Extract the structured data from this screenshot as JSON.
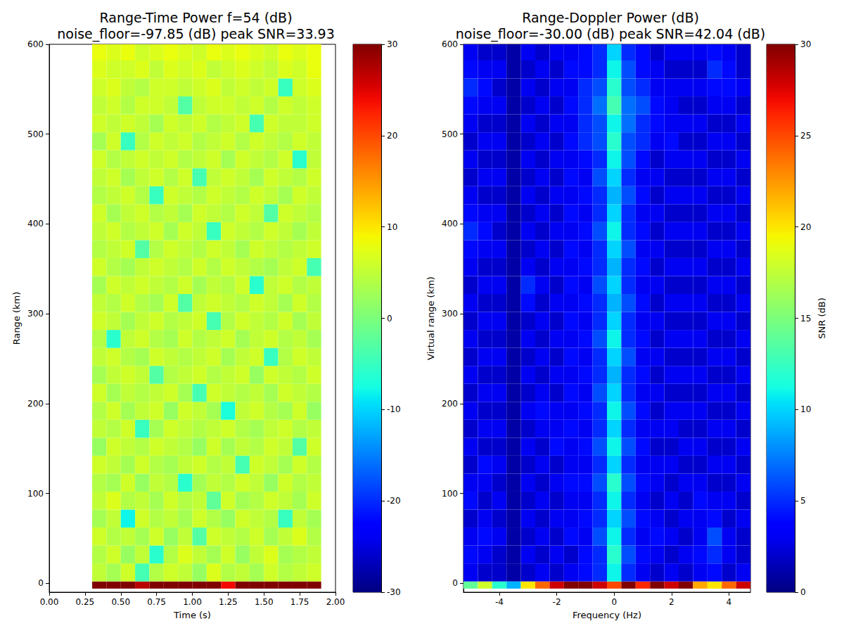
{
  "chart_data": [
    {
      "type": "heatmap",
      "title": "Range-Time Power f=54 (dB)\nnoise_floor=-97.85 (dB) peak SNR=33.93",
      "x_label": "Time (s)",
      "y_label": "Range (km)",
      "xlim": [
        0,
        2
      ],
      "xticks": [
        {
          "value": 0,
          "label": "0.00"
        },
        {
          "value": 0.25,
          "label": "0.25"
        },
        {
          "value": 0.5,
          "label": "0.50"
        },
        {
          "value": 0.75,
          "label": "0.75"
        },
        {
          "value": 1,
          "label": "1.00"
        },
        {
          "value": 1.25,
          "label": "1.25"
        },
        {
          "value": 1.5,
          "label": "1.50"
        },
        {
          "value": 1.75,
          "label": "1.75"
        },
        {
          "value": 2,
          "label": "2.00"
        }
      ],
      "ylim": [
        -10,
        600
      ],
      "yticks": [
        0,
        100,
        200,
        300,
        400,
        500,
        600
      ],
      "grid": false,
      "x_bins": [
        0.3,
        0.4,
        0.5,
        0.6,
        0.7,
        0.8,
        0.9,
        1.0,
        1.1,
        1.2,
        1.3,
        1.4,
        1.5,
        1.6,
        1.7,
        1.8,
        1.9
      ],
      "y_bins": [
        -6,
        2,
        22,
        42,
        62,
        82,
        102,
        122,
        142,
        162,
        182,
        202,
        222,
        242,
        262,
        282,
        302,
        322,
        342,
        362,
        382,
        402,
        422,
        442,
        462,
        482,
        502,
        522,
        542,
        562,
        582,
        600
      ],
      "cells": [
        [
          30,
          30,
          30,
          27,
          30,
          30,
          30,
          30,
          30,
          24,
          30,
          30,
          30,
          30,
          30,
          30
        ],
        [
          5,
          3,
          6,
          -4,
          4,
          6,
          5,
          2,
          7,
          4,
          5,
          3,
          6,
          4,
          5,
          6
        ],
        [
          4,
          6,
          2,
          5,
          -6,
          4,
          7,
          5,
          3,
          6,
          2,
          5,
          7,
          3,
          4,
          5
        ],
        [
          6,
          4,
          5,
          3,
          6,
          2,
          5,
          -3,
          6,
          5,
          4,
          6,
          3,
          5,
          7,
          4
        ],
        [
          3,
          5,
          -8,
          6,
          4,
          5,
          3,
          6,
          4,
          2,
          6,
          5,
          4,
          -5,
          5,
          3
        ],
        [
          5,
          7,
          4,
          5,
          3,
          6,
          4,
          5,
          -2,
          6,
          3,
          4,
          6,
          5,
          3,
          6
        ],
        [
          4,
          3,
          6,
          2,
          5,
          4,
          -6,
          3,
          5,
          4,
          6,
          5,
          2,
          6,
          4,
          5
        ],
        [
          6,
          5,
          3,
          6,
          4,
          3,
          5,
          6,
          4,
          5,
          -4,
          6,
          5,
          3,
          6,
          4
        ],
        [
          2,
          6,
          5,
          4,
          6,
          5,
          4,
          2,
          6,
          3,
          5,
          4,
          6,
          5,
          -3,
          6
        ],
        [
          5,
          4,
          6,
          -5,
          3,
          6,
          5,
          4,
          5,
          6,
          4,
          3,
          5,
          6,
          4,
          5
        ],
        [
          4,
          6,
          3,
          5,
          6,
          2,
          6,
          5,
          3,
          -7,
          5,
          6,
          4,
          3,
          6,
          2
        ],
        [
          6,
          3,
          5,
          4,
          5,
          6,
          3,
          -4,
          6,
          5,
          4,
          5,
          3,
          6,
          5,
          4
        ],
        [
          3,
          5,
          6,
          5,
          -3,
          4,
          5,
          6,
          4,
          5,
          6,
          2,
          6,
          5,
          4,
          6
        ],
        [
          5,
          6,
          4,
          3,
          6,
          5,
          4,
          5,
          6,
          3,
          5,
          6,
          -5,
          4,
          6,
          5
        ],
        [
          4,
          -6,
          5,
          6,
          4,
          3,
          6,
          4,
          5,
          6,
          3,
          5,
          6,
          4,
          5,
          3
        ],
        [
          6,
          5,
          3,
          5,
          6,
          4,
          5,
          6,
          -4,
          4,
          6,
          5,
          4,
          6,
          3,
          5
        ],
        [
          5,
          4,
          6,
          4,
          3,
          6,
          -3,
          5,
          6,
          5,
          4,
          6,
          5,
          3,
          6,
          4
        ],
        [
          3,
          6,
          5,
          6,
          5,
          4,
          6,
          3,
          5,
          4,
          6,
          -6,
          5,
          6,
          4,
          5
        ],
        [
          6,
          4,
          3,
          5,
          6,
          5,
          4,
          6,
          4,
          6,
          5,
          4,
          3,
          5,
          6,
          -4
        ],
        [
          4,
          5,
          6,
          -3,
          4,
          6,
          5,
          4,
          6,
          5,
          3,
          6,
          5,
          4,
          5,
          6
        ],
        [
          5,
          6,
          4,
          5,
          6,
          3,
          6,
          5,
          -5,
          6,
          5,
          4,
          6,
          5,
          3,
          5
        ],
        [
          6,
          3,
          5,
          6,
          4,
          5,
          3,
          6,
          5,
          4,
          6,
          5,
          -3,
          6,
          5,
          4
        ],
        [
          4,
          5,
          6,
          4,
          -5,
          6,
          5,
          4,
          6,
          5,
          4,
          6,
          5,
          3,
          6,
          5
        ],
        [
          5,
          6,
          3,
          5,
          6,
          4,
          6,
          -4,
          5,
          6,
          5,
          3,
          6,
          5,
          4,
          6
        ],
        [
          6,
          4,
          5,
          6,
          5,
          6,
          4,
          5,
          6,
          3,
          6,
          5,
          4,
          6,
          -6,
          5
        ],
        [
          3,
          6,
          -5,
          4,
          6,
          5,
          6,
          4,
          5,
          6,
          4,
          6,
          5,
          4,
          6,
          5
        ],
        [
          6,
          5,
          6,
          5,
          3,
          6,
          5,
          6,
          4,
          5,
          6,
          -4,
          6,
          5,
          5,
          6
        ],
        [
          5,
          6,
          4,
          6,
          6,
          5,
          -3,
          5,
          6,
          6,
          5,
          6,
          4,
          6,
          5,
          6
        ],
        [
          6,
          7,
          5,
          4,
          6,
          6,
          5,
          6,
          7,
          5,
          6,
          5,
          6,
          -5,
          6,
          7
        ],
        [
          7,
          6,
          6,
          7,
          5,
          7,
          6,
          7,
          5,
          6,
          7,
          6,
          5,
          7,
          6,
          8
        ],
        [
          8,
          7,
          8,
          6,
          7,
          8,
          7,
          6,
          8,
          7,
          8,
          7,
          6,
          8,
          7,
          8
        ]
      ],
      "colorbar": {
        "range": [
          -30,
          30
        ],
        "ticks": [
          -30,
          -20,
          -10,
          0,
          10,
          20,
          30
        ]
      }
    },
    {
      "type": "heatmap",
      "title": "Range-Doppler Power (dB)\nnoise_floor=-30.00 (dB) peak SNR=42.04 (dB)",
      "x_label": "Frequency (Hz)",
      "y_label": "Virtual range (km)",
      "xlim": [
        -5.25,
        4.75
      ],
      "xticks": [
        -4,
        -2,
        0,
        2,
        4
      ],
      "ylim": [
        -10,
        600
      ],
      "yticks": [
        0,
        100,
        200,
        300,
        400,
        500,
        600
      ],
      "grid": false,
      "x_bins": [
        -5.25,
        -4.75,
        -4.25,
        -3.75,
        -3.25,
        -2.75,
        -2.25,
        -1.75,
        -1.25,
        -0.75,
        -0.25,
        0.25,
        0.75,
        1.25,
        1.75,
        2.25,
        2.75,
        3.25,
        3.75,
        4.25,
        4.75
      ],
      "y_bins": [
        -6,
        2,
        22,
        42,
        62,
        82,
        102,
        122,
        142,
        162,
        182,
        202,
        222,
        242,
        262,
        282,
        302,
        322,
        342,
        362,
        382,
        402,
        422,
        442,
        462,
        482,
        502,
        522,
        542,
        562,
        582,
        600
      ],
      "cells": [
        [
          14,
          18,
          12,
          9,
          20,
          24,
          28,
          30,
          30,
          28,
          25,
          30,
          26,
          30,
          28,
          30,
          22,
          20,
          24,
          28
        ],
        [
          3,
          2,
          2,
          1,
          2,
          3,
          2,
          3,
          4,
          5,
          11,
          5,
          3,
          2,
          3,
          2,
          3,
          4,
          2,
          3
        ],
        [
          4,
          3,
          2,
          1,
          3,
          2,
          3,
          2,
          4,
          5,
          12,
          6,
          4,
          3,
          2,
          3,
          4,
          5,
          3,
          2
        ],
        [
          3,
          4,
          3,
          1,
          2,
          3,
          2,
          4,
          3,
          6,
          11,
          5,
          3,
          4,
          3,
          2,
          3,
          6,
          3,
          2
        ],
        [
          2,
          3,
          2,
          1,
          3,
          2,
          3,
          3,
          4,
          5,
          10,
          6,
          4,
          3,
          2,
          3,
          3,
          4,
          2,
          3
        ],
        [
          4,
          2,
          3,
          1,
          2,
          3,
          2,
          3,
          3,
          5,
          11,
          5,
          3,
          2,
          3,
          2,
          4,
          3,
          3,
          2
        ],
        [
          3,
          3,
          2,
          1,
          3,
          2,
          3,
          4,
          4,
          6,
          12,
          6,
          4,
          3,
          2,
          3,
          3,
          2,
          2,
          3
        ],
        [
          2,
          4,
          3,
          1,
          2,
          3,
          2,
          3,
          3,
          5,
          10,
          5,
          3,
          3,
          3,
          2,
          2,
          3,
          3,
          2
        ],
        [
          3,
          2,
          2,
          1,
          3,
          2,
          4,
          3,
          4,
          6,
          11,
          6,
          4,
          2,
          2,
          3,
          3,
          2,
          2,
          3
        ],
        [
          2,
          3,
          3,
          1,
          2,
          3,
          3,
          4,
          3,
          5,
          10,
          5,
          3,
          3,
          3,
          2,
          2,
          3,
          3,
          2
        ],
        [
          3,
          2,
          2,
          1,
          3,
          4,
          3,
          3,
          4,
          5,
          11,
          6,
          4,
          2,
          3,
          3,
          3,
          2,
          2,
          3
        ],
        [
          2,
          3,
          3,
          1,
          2,
          3,
          2,
          4,
          3,
          6,
          10,
          5,
          3,
          3,
          2,
          2,
          2,
          3,
          3,
          2
        ],
        [
          3,
          2,
          2,
          1,
          3,
          2,
          3,
          3,
          4,
          5,
          9,
          5,
          4,
          2,
          3,
          3,
          3,
          2,
          2,
          3
        ],
        [
          2,
          3,
          3,
          1,
          2,
          3,
          2,
          4,
          3,
          5,
          10,
          6,
          3,
          3,
          2,
          2,
          2,
          3,
          3,
          2
        ],
        [
          3,
          2,
          2,
          1,
          3,
          2,
          3,
          3,
          4,
          6,
          11,
          5,
          4,
          2,
          3,
          3,
          3,
          2,
          2,
          3
        ],
        [
          2,
          3,
          3,
          1,
          2,
          3,
          2,
          4,
          3,
          5,
          10,
          5,
          3,
          3,
          2,
          2,
          2,
          3,
          3,
          2
        ],
        [
          3,
          2,
          2,
          1,
          4,
          2,
          3,
          3,
          4,
          5,
          9,
          6,
          4,
          2,
          3,
          3,
          3,
          2,
          2,
          3
        ],
        [
          2,
          3,
          3,
          1,
          5,
          3,
          2,
          4,
          3,
          6,
          10,
          5,
          3,
          3,
          2,
          2,
          2,
          3,
          3,
          2
        ],
        [
          3,
          2,
          2,
          1,
          3,
          2,
          3,
          3,
          4,
          5,
          9,
          5,
          4,
          2,
          3,
          3,
          3,
          2,
          2,
          3
        ],
        [
          4,
          3,
          3,
          1,
          2,
          3,
          2,
          4,
          3,
          5,
          10,
          6,
          3,
          3,
          2,
          2,
          2,
          3,
          3,
          2
        ],
        [
          5,
          4,
          2,
          1,
          3,
          2,
          3,
          3,
          4,
          6,
          11,
          5,
          4,
          2,
          3,
          3,
          3,
          2,
          2,
          3
        ],
        [
          4,
          3,
          3,
          1,
          2,
          3,
          2,
          4,
          3,
          5,
          10,
          5,
          3,
          3,
          2,
          2,
          2,
          3,
          3,
          2
        ],
        [
          3,
          2,
          2,
          1,
          3,
          2,
          3,
          3,
          4,
          5,
          9,
          6,
          4,
          2,
          3,
          3,
          3,
          2,
          2,
          3
        ],
        [
          2,
          3,
          3,
          1,
          2,
          3,
          2,
          4,
          3,
          6,
          10,
          5,
          3,
          3,
          2,
          2,
          2,
          3,
          3,
          2
        ],
        [
          3,
          2,
          2,
          1,
          3,
          2,
          3,
          3,
          4,
          5,
          11,
          6,
          4,
          2,
          3,
          3,
          3,
          2,
          2,
          3
        ],
        [
          2,
          3,
          3,
          1,
          2,
          3,
          2,
          4,
          5,
          6,
          12,
          6,
          5,
          3,
          4,
          2,
          2,
          3,
          3,
          2
        ],
        [
          3,
          2,
          2,
          1,
          3,
          2,
          3,
          3,
          5,
          6,
          11,
          7,
          5,
          4,
          3,
          3,
          3,
          2,
          2,
          3
        ],
        [
          4,
          3,
          3,
          1,
          2,
          3,
          2,
          4,
          5,
          7,
          13,
          7,
          6,
          4,
          3,
          2,
          2,
          3,
          3,
          2
        ],
        [
          5,
          4,
          2,
          1,
          3,
          2,
          3,
          3,
          5,
          6,
          12,
          6,
          5,
          3,
          3,
          3,
          3,
          4,
          4,
          3
        ],
        [
          4,
          3,
          3,
          1,
          2,
          3,
          2,
          4,
          4,
          5,
          11,
          6,
          4,
          3,
          2,
          2,
          2,
          5,
          4,
          2
        ],
        [
          3,
          2,
          2,
          1,
          3,
          2,
          3,
          3,
          4,
          5,
          10,
          5,
          4,
          2,
          3,
          3,
          3,
          4,
          3,
          2
        ]
      ],
      "colorbar": {
        "range": [
          0,
          30
        ],
        "ticks": [
          0,
          5,
          10,
          15,
          20,
          25,
          30
        ],
        "label": "SNR (dB)"
      }
    }
  ]
}
